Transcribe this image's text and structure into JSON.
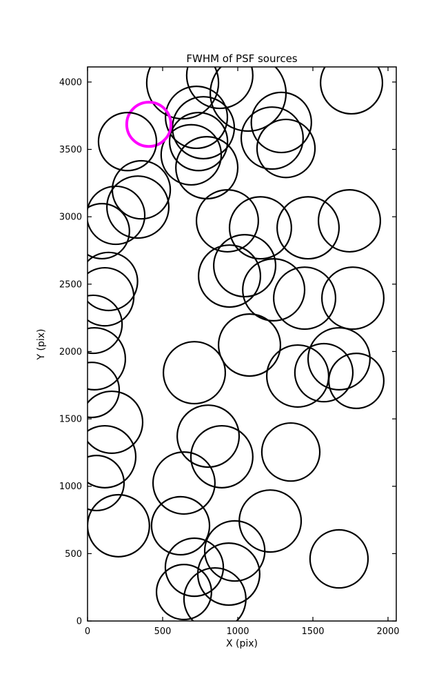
{
  "chart_data": {
    "type": "scatter",
    "title": "FWHM of PSF sources",
    "xlabel": "X (pix)",
    "ylabel": "Y (pix)",
    "xlim": [
      0,
      2055
    ],
    "ylim": [
      0,
      4112
    ],
    "xticks": [
      0,
      500,
      1000,
      1500,
      2000
    ],
    "yticks": [
      0,
      500,
      1000,
      1500,
      2000,
      2500,
      3000,
      3500,
      4000
    ],
    "grid": false,
    "legend": "none",
    "marker_style": "open-circle",
    "default_color": "#000000",
    "highlight_color": "#ff00ff",
    "circles": [
      {
        "x": 633,
        "y": 3994,
        "r": 239,
        "color": "#000000"
      },
      {
        "x": 880,
        "y": 4050,
        "r": 220,
        "color": "#000000"
      },
      {
        "x": 1069,
        "y": 3917,
        "r": 252,
        "color": "#000000"
      },
      {
        "x": 1757,
        "y": 3994,
        "r": 206,
        "color": "#000000"
      },
      {
        "x": 725,
        "y": 3738,
        "r": 206,
        "color": "#000000"
      },
      {
        "x": 771,
        "y": 3661,
        "r": 206,
        "color": "#000000"
      },
      {
        "x": 739,
        "y": 3558,
        "r": 193,
        "color": "#000000"
      },
      {
        "x": 690,
        "y": 3460,
        "r": 200,
        "color": "#000000"
      },
      {
        "x": 794,
        "y": 3364,
        "r": 206,
        "color": "#000000"
      },
      {
        "x": 1229,
        "y": 3584,
        "r": 206,
        "color": "#000000"
      },
      {
        "x": 1321,
        "y": 3507,
        "r": 193,
        "color": "#000000"
      },
      {
        "x": 1290,
        "y": 3700,
        "r": 200,
        "color": "#000000"
      },
      {
        "x": 408,
        "y": 3686,
        "r": 147,
        "color": "#ff00ff"
      },
      {
        "x": 266,
        "y": 3558,
        "r": 193,
        "color": "#000000"
      },
      {
        "x": 358,
        "y": 3200,
        "r": 193,
        "color": "#000000"
      },
      {
        "x": 335,
        "y": 3072,
        "r": 206,
        "color": "#000000"
      },
      {
        "x": 188,
        "y": 3011,
        "r": 193,
        "color": "#000000"
      },
      {
        "x": 96,
        "y": 2893,
        "r": 183,
        "color": "#000000"
      },
      {
        "x": 931,
        "y": 2970,
        "r": 206,
        "color": "#000000"
      },
      {
        "x": 1151,
        "y": 2918,
        "r": 206,
        "color": "#000000"
      },
      {
        "x": 1468,
        "y": 2918,
        "r": 206,
        "color": "#000000"
      },
      {
        "x": 1743,
        "y": 2970,
        "r": 206,
        "color": "#000000"
      },
      {
        "x": 945,
        "y": 2560,
        "r": 206,
        "color": "#000000"
      },
      {
        "x": 1046,
        "y": 2637,
        "r": 206,
        "color": "#000000"
      },
      {
        "x": 1239,
        "y": 2458,
        "r": 206,
        "color": "#000000"
      },
      {
        "x": 1445,
        "y": 2396,
        "r": 206,
        "color": "#000000"
      },
      {
        "x": 1766,
        "y": 2396,
        "r": 206,
        "color": "#000000"
      },
      {
        "x": 140,
        "y": 2520,
        "r": 193,
        "color": "#000000"
      },
      {
        "x": 115,
        "y": 2406,
        "r": 193,
        "color": "#000000"
      },
      {
        "x": 37,
        "y": 2202,
        "r": 193,
        "color": "#000000"
      },
      {
        "x": 46,
        "y": 1946,
        "r": 206,
        "color": "#000000"
      },
      {
        "x": 28,
        "y": 1715,
        "r": 183,
        "color": "#000000"
      },
      {
        "x": 1078,
        "y": 2048,
        "r": 206,
        "color": "#000000"
      },
      {
        "x": 1674,
        "y": 1946,
        "r": 206,
        "color": "#000000"
      },
      {
        "x": 711,
        "y": 1843,
        "r": 206,
        "color": "#000000"
      },
      {
        "x": 1399,
        "y": 1818,
        "r": 206,
        "color": "#000000"
      },
      {
        "x": 1573,
        "y": 1843,
        "r": 193,
        "color": "#000000"
      },
      {
        "x": 1789,
        "y": 1782,
        "r": 183,
        "color": "#000000"
      },
      {
        "x": 161,
        "y": 1475,
        "r": 206,
        "color": "#000000"
      },
      {
        "x": 803,
        "y": 1372,
        "r": 206,
        "color": "#000000"
      },
      {
        "x": 894,
        "y": 1219,
        "r": 206,
        "color": "#000000"
      },
      {
        "x": 1353,
        "y": 1254,
        "r": 193,
        "color": "#000000"
      },
      {
        "x": 115,
        "y": 1219,
        "r": 206,
        "color": "#000000"
      },
      {
        "x": 60,
        "y": 1024,
        "r": 183,
        "color": "#000000"
      },
      {
        "x": 642,
        "y": 1024,
        "r": 206,
        "color": "#000000"
      },
      {
        "x": 206,
        "y": 707,
        "r": 206,
        "color": "#000000"
      },
      {
        "x": 619,
        "y": 707,
        "r": 193,
        "color": "#000000"
      },
      {
        "x": 1216,
        "y": 742,
        "r": 206,
        "color": "#000000"
      },
      {
        "x": 1674,
        "y": 461,
        "r": 193,
        "color": "#000000"
      },
      {
        "x": 711,
        "y": 399,
        "r": 193,
        "color": "#000000"
      },
      {
        "x": 940,
        "y": 348,
        "r": 206,
        "color": "#000000"
      },
      {
        "x": 980,
        "y": 520,
        "r": 200,
        "color": "#000000"
      },
      {
        "x": 642,
        "y": 215,
        "r": 183,
        "color": "#000000"
      },
      {
        "x": 848,
        "y": 164,
        "r": 206,
        "color": "#000000"
      }
    ]
  }
}
